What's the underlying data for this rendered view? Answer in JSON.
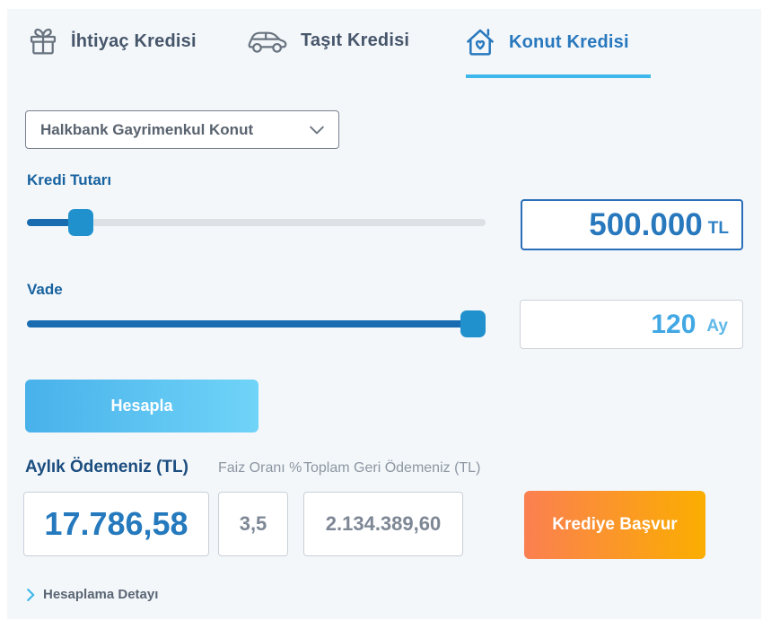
{
  "tabs": [
    {
      "label": "İhtiyaç Kredisi",
      "icon": "gift-icon",
      "active": false
    },
    {
      "label": "Taşıt Kredisi",
      "icon": "car-icon",
      "active": false
    },
    {
      "label": "Konut Kredisi",
      "icon": "house-heart-icon",
      "active": true
    }
  ],
  "product_select": {
    "value": "Halkbank Gayrimenkul Konut"
  },
  "loan_amount": {
    "label": "Kredi Tutarı",
    "value": "500.000",
    "unit": "TL",
    "slider_percent": 11
  },
  "term": {
    "label": "Vade",
    "value": "120",
    "unit": "Ay",
    "slider_percent": 96.5
  },
  "calculate_button": {
    "label": "Hesapla"
  },
  "results": {
    "monthly_payment": {
      "label": "Aylık Ödemeniz (TL)",
      "value": "17.786,58"
    },
    "interest_rate": {
      "label": "Faiz Oranı %",
      "value": "3,5"
    },
    "total_payment": {
      "label": "Toplam Geri Ödemeniz (TL)",
      "value": "2.134.389,60"
    }
  },
  "apply_button": {
    "label": "Krediye Başvur"
  },
  "detail_link": {
    "label": "Hesaplama Detayı"
  },
  "colors": {
    "panel_bg": "#f3f7fa",
    "active_blue": "#2878be",
    "underline_blue": "#3eb7ea",
    "slider_fill": "#1a6cb1",
    "slider_handle": "#2191ce",
    "term_value_blue": "#41a8e4",
    "calc_gradient_start": "#48b1ea",
    "calc_gradient_end": "#70d4f8",
    "apply_gradient_start": "#fb7f51",
    "apply_gradient_end": "#fbae00"
  }
}
